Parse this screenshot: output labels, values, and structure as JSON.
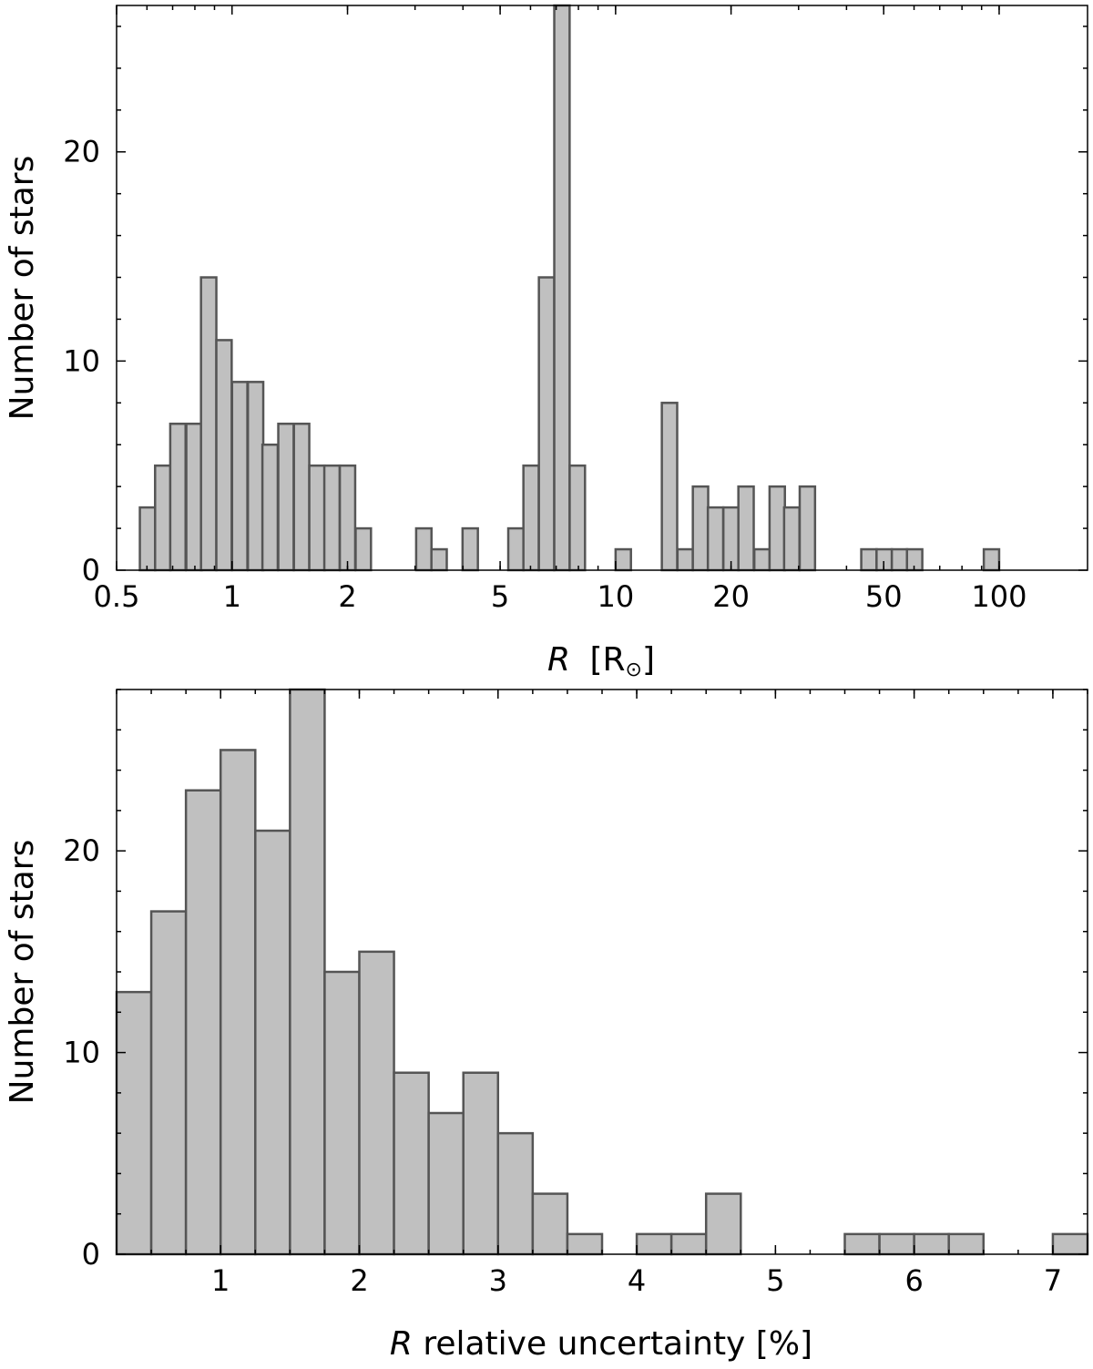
{
  "chart_data": [
    {
      "type": "bar",
      "xscale": "log",
      "xlim": [
        0.5,
        170
      ],
      "ylim": [
        0,
        27
      ],
      "xlabel": "R",
      "xlabel_unit": "[R",
      "xlabel_close": "]",
      "ylabel": "Number of stars",
      "xticks": [
        {
          "v": 0.5,
          "label": "0.5"
        },
        {
          "v": 1,
          "label": "1"
        },
        {
          "v": 2,
          "label": "2"
        },
        {
          "v": 5,
          "label": "5"
        },
        {
          "v": 10,
          "label": "10"
        },
        {
          "v": 20,
          "label": "20"
        },
        {
          "v": 50,
          "label": "50"
        },
        {
          "v": 100,
          "label": "100"
        }
      ],
      "yticks": [
        {
          "v": 0,
          "label": "0"
        },
        {
          "v": 10,
          "label": "10"
        },
        {
          "v": 20,
          "label": "20"
        }
      ],
      "bin_log_width": 0.04,
      "bins": [
        {
          "x": 0.575,
          "v": 3
        },
        {
          "x": 0.63,
          "v": 5
        },
        {
          "x": 0.69,
          "v": 7
        },
        {
          "x": 0.76,
          "v": 7
        },
        {
          "x": 0.83,
          "v": 14
        },
        {
          "x": 0.91,
          "v": 11
        },
        {
          "x": 1.0,
          "v": 9
        },
        {
          "x": 1.1,
          "v": 9
        },
        {
          "x": 1.2,
          "v": 6
        },
        {
          "x": 1.32,
          "v": 7
        },
        {
          "x": 1.45,
          "v": 7
        },
        {
          "x": 1.59,
          "v": 5
        },
        {
          "x": 1.74,
          "v": 5
        },
        {
          "x": 1.91,
          "v": 5
        },
        {
          "x": 2.1,
          "v": 2
        },
        {
          "x": 3.02,
          "v": 2
        },
        {
          "x": 3.31,
          "v": 1
        },
        {
          "x": 3.99,
          "v": 2
        },
        {
          "x": 5.25,
          "v": 2
        },
        {
          "x": 5.75,
          "v": 5
        },
        {
          "x": 6.31,
          "v": 14
        },
        {
          "x": 6.92,
          "v": 27
        },
        {
          "x": 7.59,
          "v": 5
        },
        {
          "x": 10.0,
          "v": 1
        },
        {
          "x": 13.2,
          "v": 8
        },
        {
          "x": 14.5,
          "v": 1
        },
        {
          "x": 15.9,
          "v": 4
        },
        {
          "x": 17.4,
          "v": 3
        },
        {
          "x": 19.1,
          "v": 3
        },
        {
          "x": 20.9,
          "v": 4
        },
        {
          "x": 23.0,
          "v": 1
        },
        {
          "x": 25.2,
          "v": 4
        },
        {
          "x": 27.5,
          "v": 3
        },
        {
          "x": 30.2,
          "v": 4
        },
        {
          "x": 43.7,
          "v": 1
        },
        {
          "x": 47.9,
          "v": 1
        },
        {
          "x": 52.5,
          "v": 1
        },
        {
          "x": 57.5,
          "v": 1
        },
        {
          "x": 91.2,
          "v": 1
        }
      ]
    },
    {
      "type": "bar",
      "xscale": "linear",
      "xlim": [
        0.25,
        7.25
      ],
      "ylim": [
        0,
        28
      ],
      "xlabel": "R",
      "xlabel_rest": " relative uncertainty [%]",
      "ylabel": "Number of stars",
      "xticks": [
        {
          "v": 1,
          "label": "1"
        },
        {
          "v": 2,
          "label": "2"
        },
        {
          "v": 3,
          "label": "3"
        },
        {
          "v": 4,
          "label": "4"
        },
        {
          "v": 5,
          "label": "5"
        },
        {
          "v": 6,
          "label": "6"
        },
        {
          "v": 7,
          "label": "7"
        }
      ],
      "yticks": [
        {
          "v": 0,
          "label": "0"
        },
        {
          "v": 10,
          "label": "10"
        },
        {
          "v": 20,
          "label": "20"
        }
      ],
      "bin_width": 0.25,
      "bins": [
        {
          "x": 0.25,
          "v": 13
        },
        {
          "x": 0.5,
          "v": 17
        },
        {
          "x": 0.75,
          "v": 23
        },
        {
          "x": 1.0,
          "v": 25
        },
        {
          "x": 1.25,
          "v": 21
        },
        {
          "x": 1.5,
          "v": 28
        },
        {
          "x": 1.75,
          "v": 14
        },
        {
          "x": 2.0,
          "v": 15
        },
        {
          "x": 2.25,
          "v": 9
        },
        {
          "x": 2.5,
          "v": 7
        },
        {
          "x": 2.75,
          "v": 9
        },
        {
          "x": 3.0,
          "v": 6
        },
        {
          "x": 3.25,
          "v": 3
        },
        {
          "x": 3.5,
          "v": 1
        },
        {
          "x": 4.0,
          "v": 1
        },
        {
          "x": 4.25,
          "v": 1
        },
        {
          "x": 4.5,
          "v": 3
        },
        {
          "x": 5.5,
          "v": 1
        },
        {
          "x": 5.75,
          "v": 1
        },
        {
          "x": 6.0,
          "v": 1
        },
        {
          "x": 6.25,
          "v": 1
        },
        {
          "x": 7.0,
          "v": 1
        }
      ]
    }
  ]
}
